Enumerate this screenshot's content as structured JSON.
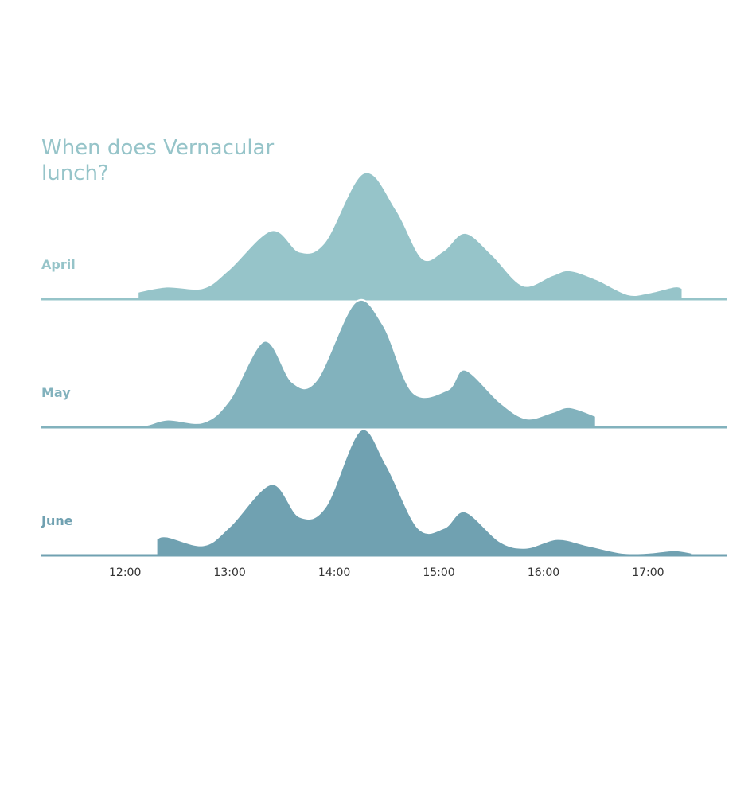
{
  "chart_data": {
    "type": "area",
    "title": "When does Vernacular lunch?",
    "xlabel": "",
    "ylabel": "",
    "x_ticks": [
      "12:00",
      "13:00",
      "14:00",
      "15:00",
      "16:00",
      "17:00"
    ],
    "x_range": [
      "11:12",
      "17:45"
    ],
    "y_range": [
      0,
      1
    ],
    "grid": false,
    "legend": "none",
    "series": [
      {
        "name": "April",
        "color": "#96c4c9",
        "points": [
          [
            "12:08",
            0.05
          ],
          [
            "12:24",
            0.09
          ],
          [
            "12:45",
            0.08
          ],
          [
            "13:00",
            0.23
          ],
          [
            "13:24",
            0.54
          ],
          [
            "13:40",
            0.37
          ],
          [
            "13:55",
            0.45
          ],
          [
            "14:17",
            1.0
          ],
          [
            "14:35",
            0.71
          ],
          [
            "14:50",
            0.32
          ],
          [
            "15:03",
            0.38
          ],
          [
            "15:15",
            0.52
          ],
          [
            "15:30",
            0.35
          ],
          [
            "15:48",
            0.1
          ],
          [
            "16:05",
            0.18
          ],
          [
            "16:15",
            0.22
          ],
          [
            "16:30",
            0.15
          ],
          [
            "16:48",
            0.03
          ],
          [
            "17:00",
            0.04
          ],
          [
            "17:15",
            0.09
          ],
          [
            "17:19",
            0.08
          ]
        ]
      },
      {
        "name": "May",
        "color": "#82b2bd",
        "points": [
          [
            "11:30",
            0.01
          ],
          [
            "12:08",
            0.01
          ],
          [
            "12:24",
            0.06
          ],
          [
            "12:45",
            0.04
          ],
          [
            "13:00",
            0.22
          ],
          [
            "13:20",
            0.69
          ],
          [
            "13:36",
            0.36
          ],
          [
            "13:50",
            0.38
          ],
          [
            "14:12",
            1.0
          ],
          [
            "14:28",
            0.82
          ],
          [
            "14:45",
            0.28
          ],
          [
            "15:05",
            0.3
          ],
          [
            "15:15",
            0.46
          ],
          [
            "15:35",
            0.2
          ],
          [
            "15:50",
            0.07
          ],
          [
            "16:05",
            0.12
          ],
          [
            "16:15",
            0.16
          ],
          [
            "16:30",
            0.09
          ]
        ]
      },
      {
        "name": "June",
        "color": "#70a1b1",
        "points": [
          [
            "12:18",
            0.13
          ],
          [
            "12:24",
            0.15
          ],
          [
            "12:45",
            0.08
          ],
          [
            "13:00",
            0.23
          ],
          [
            "13:24",
            0.57
          ],
          [
            "13:40",
            0.31
          ],
          [
            "13:55",
            0.39
          ],
          [
            "14:15",
            1.0
          ],
          [
            "14:30",
            0.72
          ],
          [
            "14:48",
            0.22
          ],
          [
            "15:03",
            0.22
          ],
          [
            "15:15",
            0.35
          ],
          [
            "15:35",
            0.11
          ],
          [
            "15:50",
            0.06
          ],
          [
            "16:08",
            0.13
          ],
          [
            "16:25",
            0.08
          ],
          [
            "16:45",
            0.02
          ],
          [
            "17:00",
            0.02
          ],
          [
            "17:15",
            0.04
          ],
          [
            "17:25",
            0.02
          ]
        ]
      }
    ]
  }
}
